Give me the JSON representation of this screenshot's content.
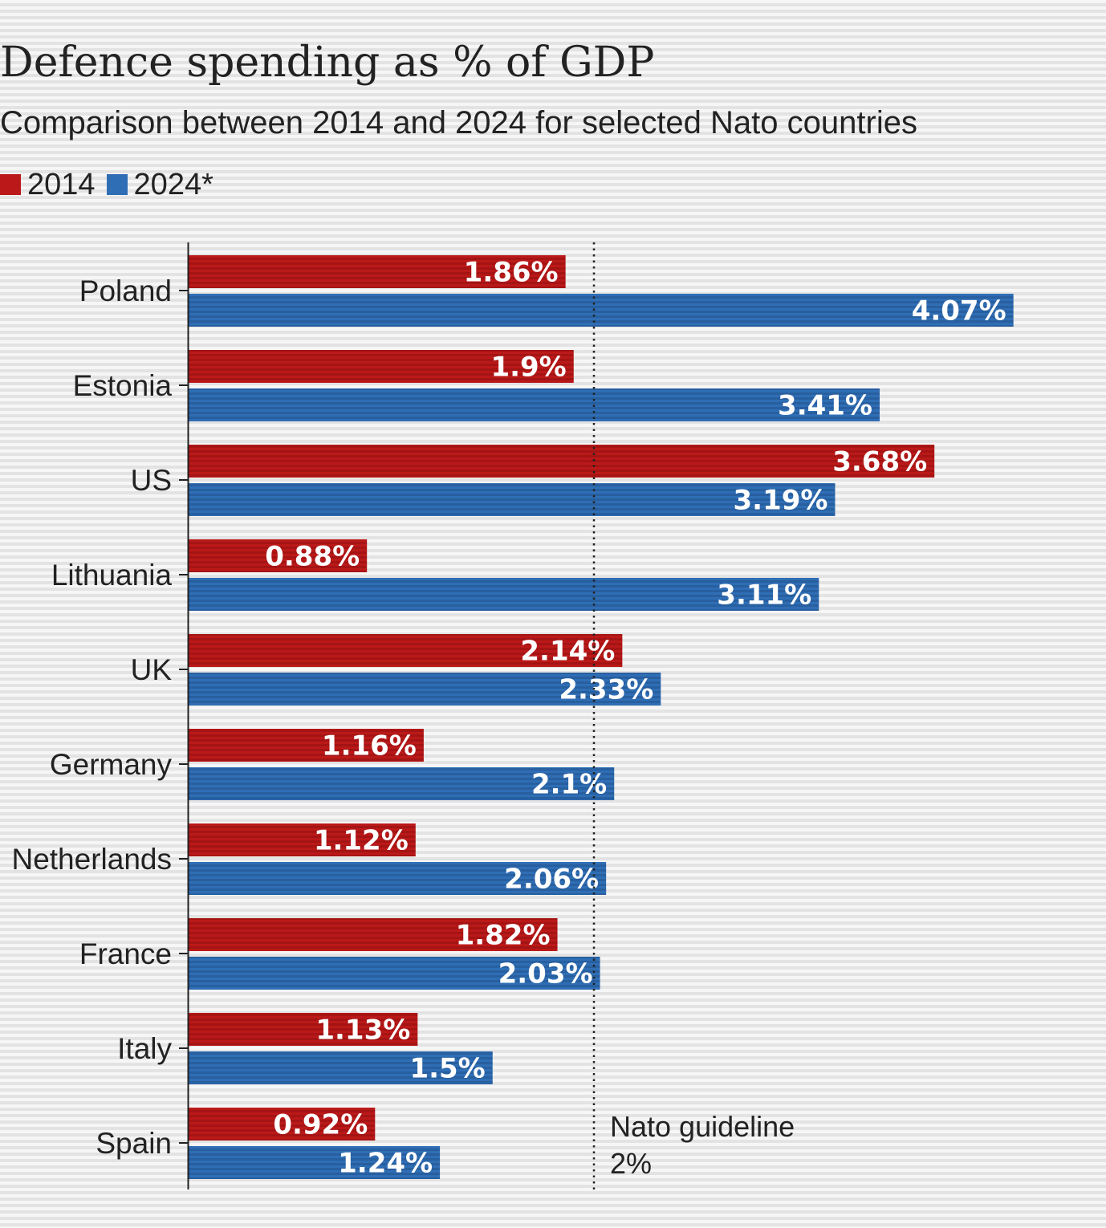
{
  "chart_data": {
    "type": "bar",
    "orientation": "horizontal",
    "title": "Defence spending as % of GDP",
    "subtitle": "Comparison between 2014 and 2024 for selected Nato countries",
    "categories": [
      "Poland",
      "Estonia",
      "US",
      "Lithuania",
      "UK",
      "Germany",
      "Netherlands",
      "France",
      "Italy",
      "Spain"
    ],
    "series": [
      {
        "name": "2014",
        "color": "#bb1919",
        "values": [
          1.86,
          1.9,
          3.68,
          0.88,
          2.14,
          1.16,
          1.12,
          1.82,
          1.13,
          0.92
        ],
        "labels": [
          "1.86%",
          "1.9%",
          "3.68%",
          "0.88%",
          "2.14%",
          "1.16%",
          "1.12%",
          "1.82%",
          "1.13%",
          "0.92%"
        ]
      },
      {
        "name": "2024*",
        "color": "#2f6eb5",
        "values": [
          4.07,
          3.41,
          3.19,
          3.11,
          2.33,
          2.1,
          2.06,
          2.03,
          1.5,
          1.24
        ],
        "labels": [
          "4.07%",
          "3.41%",
          "3.19%",
          "3.11%",
          "2.33%",
          "2.1%",
          "2.06%",
          "2.03%",
          "1.5%",
          "1.24%"
        ]
      }
    ],
    "xlim": [
      0,
      4.1
    ],
    "grid": false,
    "legend_position": "top-left",
    "reference_line": {
      "value": 2,
      "style": "dotted",
      "label_line1": "Nato guideline",
      "label_line2": "2%"
    }
  }
}
